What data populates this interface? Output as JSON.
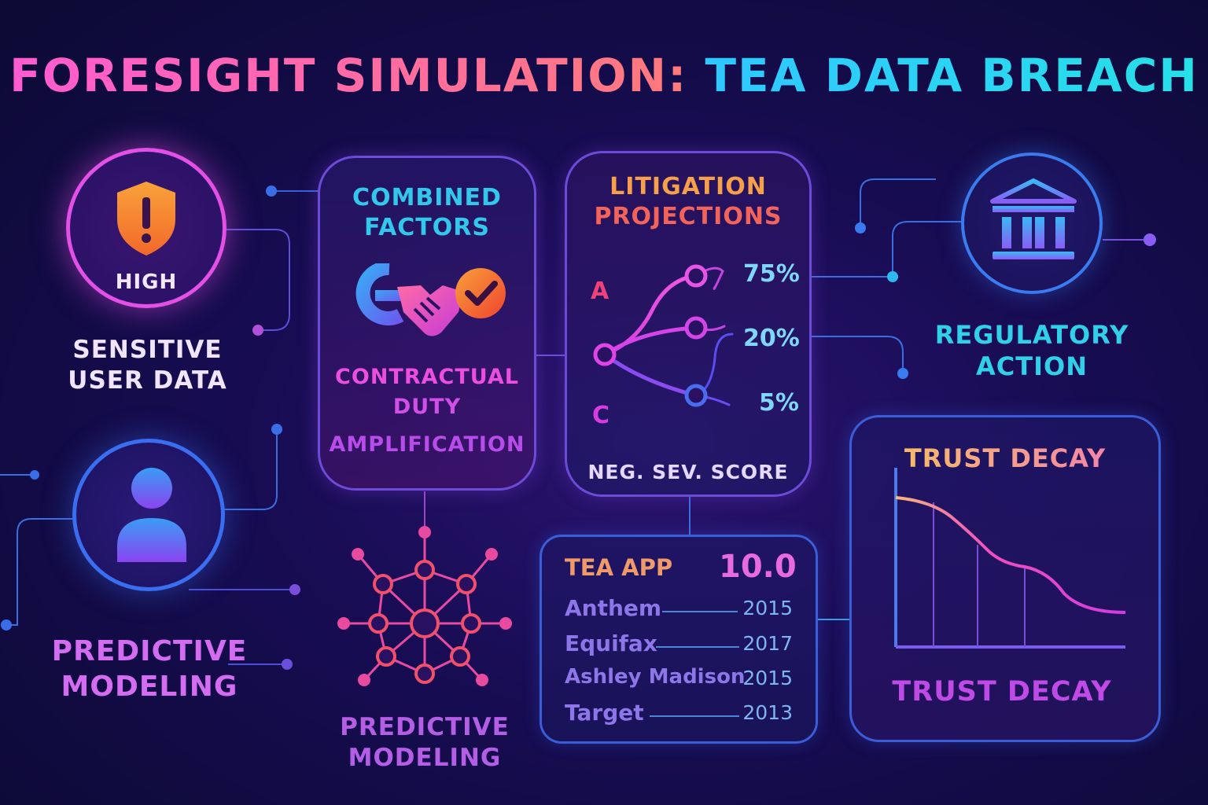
{
  "title": {
    "part1": "FORESIGHT SIMULATION:",
    "part2": "TEA DATA BREACH"
  },
  "sensitive": {
    "badge": "HIGH",
    "label_line1": "SENSITIVE",
    "label_line2": "USER DATA",
    "icon": "shield-alert-icon"
  },
  "predictive_left": {
    "label_line1": "PREDICTIVE",
    "label_line2": "MODELING",
    "icon": "user-icon"
  },
  "combined": {
    "title_line1": "COMBINED",
    "title_line2": "FACTORS",
    "line1": "CONTRACTUAL",
    "line2": "DUTY",
    "line3": "AMPLIFICATION",
    "icons": [
      "g-logo-icon",
      "handshake-icon",
      "checkmark-icon"
    ]
  },
  "predictive_center": {
    "label_line1": "PREDICTIVE",
    "label_line2": "MODELING",
    "icon": "network-icon"
  },
  "litigation": {
    "title_line1": "LITIGATION",
    "title_line2": "PROJECTIONS",
    "label_a": "A",
    "label_c": "C",
    "outcomes": [
      {
        "value": "75%"
      },
      {
        "value": "20%"
      },
      {
        "value": "5%"
      }
    ],
    "footer": "NEG. SEV. SCORE"
  },
  "regulatory": {
    "label_line1": "REGULATORY",
    "label_line2": "ACTION",
    "icon": "bank-icon"
  },
  "comparison": {
    "header_name": "TEA APP",
    "header_score": "10.0",
    "rows": [
      {
        "name": "Anthem",
        "year": "2015"
      },
      {
        "name": "Equifax",
        "year": "2017"
      },
      {
        "name": "Ashley Madison",
        "year": "2015"
      },
      {
        "name": "Target",
        "year": "2013"
      }
    ]
  },
  "trust": {
    "title": "TRUST DECAY",
    "footer": "TRUST DECAY"
  },
  "colors": {
    "pink": "#ff4fd8",
    "cyan": "#2fd8e8",
    "purple": "#8a5cf6",
    "orange": "#f79a2e",
    "blue": "#3a7cf0"
  }
}
